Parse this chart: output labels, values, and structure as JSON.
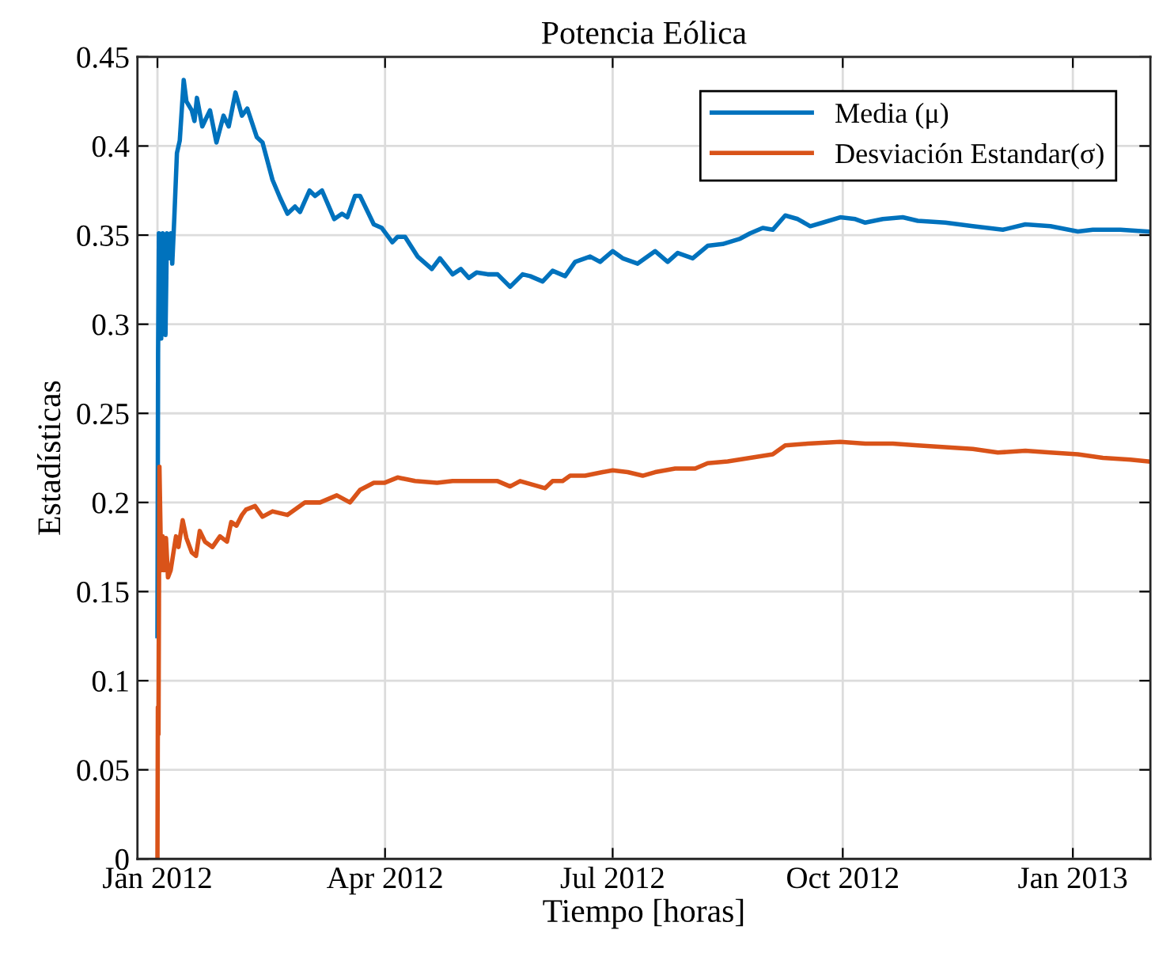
{
  "chart_data": {
    "type": "line",
    "title": "Potencia Eólica",
    "xlabel": "Tiempo [horas]",
    "ylabel": "Estadísticas",
    "xlim": [
      "2011-12-24",
      "2013-02-01"
    ],
    "xticks": [
      {
        "value": "2012-01-01",
        "label": "Jan 2012"
      },
      {
        "value": "2012-04-01",
        "label": "Apr 2012"
      },
      {
        "value": "2012-07-01",
        "label": "Jul 2012"
      },
      {
        "value": "2012-10-01",
        "label": "Oct 2012"
      },
      {
        "value": "2013-01-01",
        "label": "Jan 2013"
      }
    ],
    "ylim": [
      0,
      0.45
    ],
    "yticks": [
      0,
      0.05,
      0.1,
      0.15,
      0.2,
      0.25,
      0.3,
      0.35,
      0.4,
      0.45
    ],
    "grid": true,
    "legend": "top right",
    "series": [
      {
        "name": "Media (μ)",
        "color": "#0072bd",
        "x": [
          "2012-01-01T00:00",
          "2012-01-01T06:00",
          "2012-01-01T14:00",
          "2012-01-02T12:00",
          "2012-01-03T02:00",
          "2012-01-04T05:00",
          "2012-01-04T19:00",
          "2012-01-05T14:00",
          "2012-01-06T07:00",
          "2012-01-06T22:00",
          "2012-01-07T18:00",
          "2012-01-08T19:00",
          "2012-01-09T22:00",
          "2012-01-11T12:00",
          "2012-01-12T14:00",
          "2012-01-14T17:00",
          "2012-01-15T19:00",
          "2012-01-16T19:00",
          "2012-01-18T22:00",
          "2012-01-22",
          "2012-01-24T14:00",
          "2012-01-27T10:00",
          "2012-01-29T12:00",
          "2012-02-01T05:00",
          "2012-02-03T19:00",
          "2012-02-05T22:00",
          "2012-02-09T17:00",
          "2012-02-12",
          "2012-02-16",
          "2012-02-19",
          "2012-02-22",
          "2012-02-25",
          "2012-02-27",
          "2012-03-01T19:00",
          "2012-03-04",
          "2012-03-06T19:00",
          "2012-03-11T17:00",
          "2012-03-14T19:00",
          "2012-03-16T22:00",
          "2012-03-20",
          "2012-03-22",
          "2012-03-27T12:00",
          "2012-03-30T17:00",
          "2012-04-03T22:00",
          "2012-04-06",
          "2012-04-09",
          "2012-04-14",
          "2012-04-19T17:00",
          "2012-04-22T22:00",
          "2012-04-28",
          "2012-05-01T07:00",
          "2012-05-04T12:00",
          "2012-05-07T14:00",
          "2012-05-12",
          "2012-05-16",
          "2012-05-21",
          "2012-05-26",
          "2012-05-29",
          "2012-06-03",
          "2012-06-07",
          "2012-06-12",
          "2012-06-16",
          "2012-06-22",
          "2012-06-26",
          "2012-07-01",
          "2012-07-05",
          "2012-07-11",
          "2012-07-18",
          "2012-07-23",
          "2012-07-27",
          "2012-08-02",
          "2012-08-08",
          "2012-08-14",
          "2012-08-21",
          "2012-08-25",
          "2012-08-30",
          "2012-09-03",
          "2012-09-08",
          "2012-09-13",
          "2012-09-18",
          "2012-09-23",
          "2012-09-30",
          "2012-10-06",
          "2012-10-10",
          "2012-10-17",
          "2012-10-25",
          "2012-10-31",
          "2012-11-11",
          "2012-11-22",
          "2012-12-04",
          "2012-12-13",
          "2012-12-23",
          "2013-01-03",
          "2013-01-09",
          "2013-01-20",
          "2013-01-31"
        ],
        "values": [
          0.125,
          0.283,
          0.351,
          0.292,
          0.351,
          0.294,
          0.351,
          0.337,
          0.351,
          0.334,
          0.36,
          0.396,
          0.403,
          0.437,
          0.425,
          0.42,
          0.414,
          0.427,
          0.411,
          0.42,
          0.402,
          0.417,
          0.411,
          0.43,
          0.417,
          0.421,
          0.405,
          0.402,
          0.381,
          0.371,
          0.362,
          0.366,
          0.363,
          0.375,
          0.372,
          0.375,
          0.359,
          0.362,
          0.36,
          0.372,
          0.372,
          0.356,
          0.354,
          0.346,
          0.349,
          0.349,
          0.338,
          0.331,
          0.337,
          0.328,
          0.331,
          0.326,
          0.329,
          0.328,
          0.328,
          0.321,
          0.328,
          0.327,
          0.324,
          0.33,
          0.327,
          0.335,
          0.338,
          0.335,
          0.341,
          0.337,
          0.334,
          0.341,
          0.335,
          0.34,
          0.337,
          0.344,
          0.345,
          0.348,
          0.351,
          0.354,
          0.353,
          0.361,
          0.359,
          0.355,
          0.357,
          0.36,
          0.359,
          0.357,
          0.359,
          0.36,
          0.358,
          0.357,
          0.355,
          0.353,
          0.356,
          0.355,
          0.352,
          0.353,
          0.353,
          0.352
        ]
      },
      {
        "name": "Desviación Estandar(σ)",
        "color": "#d95319",
        "x": [
          "2012-01-01T00:00",
          "2012-01-01T04:00",
          "2012-01-01T10:00",
          "2012-01-01T19:00",
          "2012-01-02T12:00",
          "2012-01-03T02:00",
          "2012-01-03T17:00",
          "2012-01-04T10:00",
          "2012-01-05T05:00",
          "2012-01-06T07:00",
          "2012-01-07T07:00",
          "2012-01-08T10:00",
          "2012-01-09T10:00",
          "2012-01-11T02:00",
          "2012-01-12T14:00",
          "2012-01-14T17:00",
          "2012-01-16T10:00",
          "2012-01-17T22:00",
          "2012-01-20",
          "2012-01-23",
          "2012-01-26",
          "2012-01-28T19:00",
          "2012-01-30T12:00",
          "2012-02-01T14:00",
          "2012-02-03T19:00",
          "2012-02-05T10:00",
          "2012-02-09",
          "2012-02-12",
          "2012-02-16",
          "2012-02-22",
          "2012-02-29",
          "2012-03-06",
          "2012-03-12T17:00",
          "2012-03-18",
          "2012-03-22",
          "2012-03-27T12:00",
          "2012-03-31T17:00",
          "2012-04-06",
          "2012-04-13",
          "2012-04-21T19:00",
          "2012-04-28",
          "2012-05-07T14:00",
          "2012-05-16",
          "2012-05-21",
          "2012-05-25",
          "2012-05-30",
          "2012-06-04",
          "2012-06-07",
          "2012-06-11",
          "2012-06-14",
          "2012-06-20",
          "2012-06-27",
          "2012-07-01",
          "2012-07-07",
          "2012-07-13",
          "2012-07-18",
          "2012-07-26",
          "2012-08-03",
          "2012-08-08",
          "2012-08-16",
          "2012-08-25",
          "2012-09-03",
          "2012-09-08",
          "2012-09-17",
          "2012-09-30",
          "2012-10-10",
          "2012-10-21",
          "2012-10-31",
          "2012-11-11",
          "2012-11-22",
          "2012-12-02",
          "2012-12-13",
          "2012-12-23",
          "2013-01-03",
          "2013-01-13",
          "2013-01-24",
          "2013-01-31"
        ],
        "values": [
          0,
          0.085,
          0.07,
          0.22,
          0.162,
          0.181,
          0.162,
          0.18,
          0.158,
          0.162,
          0.171,
          0.181,
          0.175,
          0.19,
          0.18,
          0.172,
          0.17,
          0.184,
          0.178,
          0.175,
          0.181,
          0.178,
          0.189,
          0.187,
          0.193,
          0.196,
          0.198,
          0.192,
          0.195,
          0.193,
          0.2,
          0.2,
          0.204,
          0.2,
          0.207,
          0.211,
          0.211,
          0.214,
          0.212,
          0.211,
          0.212,
          0.212,
          0.212,
          0.209,
          0.212,
          0.21,
          0.208,
          0.212,
          0.212,
          0.215,
          0.215,
          0.217,
          0.218,
          0.217,
          0.215,
          0.217,
          0.219,
          0.219,
          0.222,
          0.223,
          0.225,
          0.227,
          0.232,
          0.233,
          0.234,
          0.233,
          0.233,
          0.232,
          0.231,
          0.23,
          0.228,
          0.229,
          0.228,
          0.227,
          0.225,
          0.224,
          0.223
        ]
      }
    ]
  }
}
